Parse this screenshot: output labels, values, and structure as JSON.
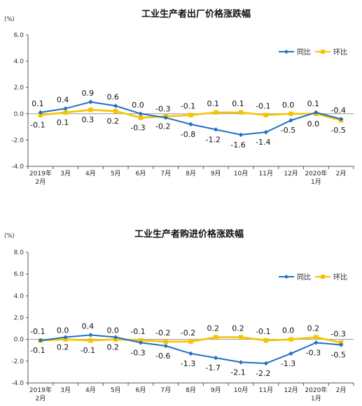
{
  "chart_data": [
    {
      "type": "line",
      "title": "工业生产者出厂价格涨跌幅",
      "ylabel": "(%)",
      "ylim": [
        -4.0,
        6.0
      ],
      "yticks": [
        "6.0",
        "4.0",
        "2.0",
        "0.0",
        "-2.0",
        "-4.0"
      ],
      "categories": [
        [
          "2019年",
          "2月"
        ],
        [
          "3月"
        ],
        [
          "4月"
        ],
        [
          "5月"
        ],
        [
          "6月"
        ],
        [
          "7月"
        ],
        [
          "8月"
        ],
        [
          "9月"
        ],
        [
          "10月"
        ],
        [
          "11月"
        ],
        [
          "12月"
        ],
        [
          "2020年",
          "1月"
        ],
        [
          "2月"
        ]
      ],
      "legend_position": "top-right",
      "series": [
        {
          "name": "同比",
          "color": "#1f6fc6",
          "values": [
            0.1,
            0.4,
            0.9,
            0.6,
            0.0,
            -0.3,
            -0.8,
            -1.2,
            -1.6,
            -1.4,
            -0.5,
            0.1,
            -0.4
          ],
          "labels": [
            "0.1",
            "0.4",
            "0.9",
            "0.6",
            "0.0",
            "-0.3",
            "-0.8",
            "-1.2",
            "-1.6",
            "-1.4",
            "-0.5",
            "0.1",
            "-0.4"
          ]
        },
        {
          "name": "环比",
          "color": "#f5c400",
          "values": [
            -0.1,
            0.1,
            0.3,
            0.2,
            -0.3,
            -0.2,
            -0.1,
            0.1,
            0.1,
            -0.1,
            0.0,
            0.0,
            -0.5
          ],
          "labels": [
            "-0.1",
            "0.1",
            "0.3",
            "0.2",
            "-0.3",
            "-0.2",
            "-0.1",
            "0.1",
            "0.1",
            "-0.1",
            "0.0",
            "0.0",
            "-0.5"
          ]
        }
      ]
    },
    {
      "type": "line",
      "title": "工业生产者购进价格涨跌幅",
      "ylabel": "(%)",
      "ylim": [
        -4.0,
        8.0
      ],
      "yticks": [
        "8.0",
        "6.0",
        "4.0",
        "2.0",
        "0.0",
        "-2.0",
        "-4.0"
      ],
      "categories": [
        [
          "2019年",
          "2月"
        ],
        [
          "3月"
        ],
        [
          "4月"
        ],
        [
          "5月"
        ],
        [
          "6月"
        ],
        [
          "7月"
        ],
        [
          "8月"
        ],
        [
          "9月"
        ],
        [
          "10月"
        ],
        [
          "11月"
        ],
        [
          "12月"
        ],
        [
          "2020年",
          "1月"
        ],
        [
          "2月"
        ]
      ],
      "legend_position": "top-right",
      "series": [
        {
          "name": "同比",
          "color": "#1f6fc6",
          "values": [
            -0.1,
            0.2,
            0.4,
            0.2,
            -0.3,
            -0.6,
            -1.3,
            -1.7,
            -2.1,
            -2.2,
            -1.3,
            -0.3,
            -0.5
          ],
          "labels": [
            "-0.1",
            "0.2",
            "0.4",
            "0.2",
            "-0.3",
            "-0.6",
            "-1.3",
            "-1.7",
            "-2.1",
            "-2.2",
            "-1.3",
            "-0.3",
            "-0.5"
          ]
        },
        {
          "name": "环比",
          "color": "#f5c400",
          "values": [
            -0.1,
            0.0,
            -0.1,
            0.0,
            -0.1,
            -0.2,
            -0.2,
            0.2,
            0.2,
            -0.1,
            0.0,
            0.2,
            -0.3
          ],
          "labels": [
            "-0.1",
            "0.0",
            "-0.1",
            "0.0",
            "-0.1",
            "-0.2",
            "-0.2",
            "0.2",
            "0.2",
            "-0.1",
            "0.0",
            "0.2",
            "-0.3"
          ]
        }
      ]
    }
  ]
}
